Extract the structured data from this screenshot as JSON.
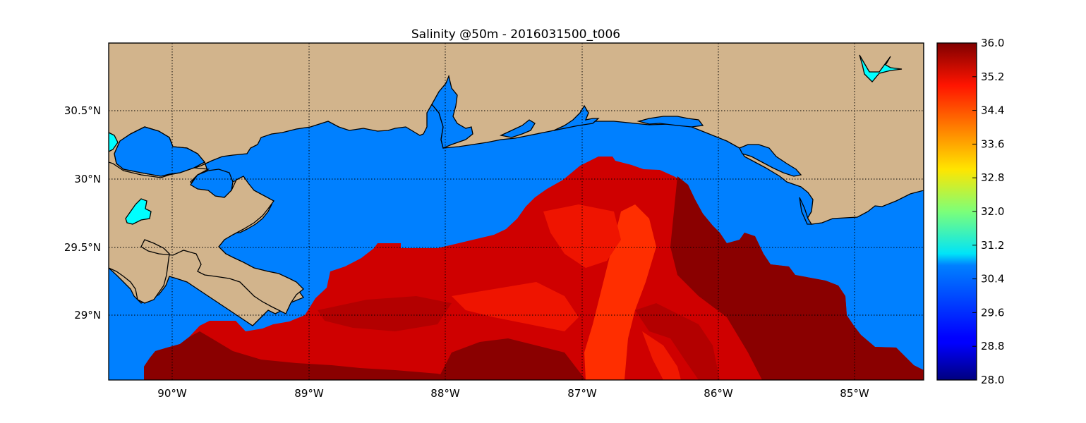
{
  "map": {
    "title": "Salinity @50m - 2016031500_t006",
    "lon_labels": [
      "90°W",
      "89°W",
      "88°W",
      "87°W",
      "86°W",
      "85°W"
    ],
    "lat_labels": [
      "30.5°N",
      "30°N",
      "29.5°N",
      "29°N"
    ],
    "colors": {
      "land": "#d2b48c",
      "water": "#0080ff",
      "lake": "#00ffff",
      "high_salinity": "#800000"
    }
  },
  "colorbar": {
    "labels": [
      "36.0",
      "35.2",
      "34.4",
      "33.6",
      "32.8",
      "32.0",
      "31.2",
      "30.4",
      "29.6",
      "28.8",
      "28.0"
    ],
    "min": 28.0,
    "max": 36.0,
    "colormap": "jet"
  }
}
